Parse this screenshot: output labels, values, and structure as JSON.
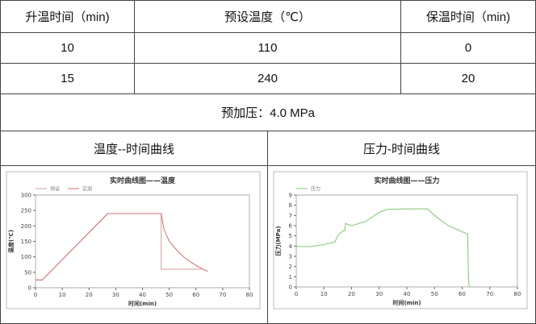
{
  "table": {
    "headers": [
      "升温时间（min)",
      "预设温度（℃）",
      "保温时间（min)"
    ],
    "rows": [
      [
        "10",
        "110",
        "0"
      ],
      [
        "15",
        "240",
        "20"
      ]
    ],
    "preload": "预加压：4.0 MPa",
    "chart_titles": [
      "温度--时间曲线",
      "压力-时间曲线"
    ]
  },
  "chart_data": [
    {
      "type": "line",
      "title": "实时曲线图——温度",
      "xlabel": "时间(min)",
      "ylabel": "温度(℃)",
      "xlim": [
        0,
        80
      ],
      "ylim": [
        0,
        300
      ],
      "xticks": [
        0,
        10,
        20,
        30,
        40,
        50,
        60,
        70,
        80
      ],
      "yticks": [
        0,
        50,
        100,
        150,
        200,
        250,
        300
      ],
      "legend": "top-left",
      "series": [
        {
          "name": "预设",
          "color": "#d89a9a",
          "x": [
            0,
            2.5,
            27,
            47,
            47,
            62
          ],
          "y": [
            25,
            25,
            240,
            240,
            60,
            60
          ]
        },
        {
          "name": "实测",
          "color": "#e06a6a",
          "x": [
            0,
            2.5,
            27,
            47,
            48,
            50,
            53,
            56,
            59,
            62,
            64.5
          ],
          "y": [
            25,
            25,
            240,
            240,
            190,
            150,
            120,
            95,
            78,
            62,
            53
          ]
        }
      ]
    },
    {
      "type": "line",
      "title": "实时曲线图——压力",
      "xlabel": "时间(min)",
      "ylabel": "压力(MPa)",
      "xlim": [
        0,
        80
      ],
      "ylim": [
        0,
        9
      ],
      "xticks": [
        0,
        10,
        20,
        30,
        40,
        50,
        60,
        70,
        80
      ],
      "yticks": [
        0,
        1,
        2,
        3,
        4,
        5,
        6,
        7,
        8,
        9
      ],
      "legend": "top-left",
      "series": [
        {
          "name": "压力",
          "color": "#7cc86a",
          "x": [
            0,
            0.5,
            5,
            10,
            14,
            15,
            16,
            17,
            17.5,
            17.8,
            18.5,
            20,
            25,
            30,
            33,
            40,
            47.5,
            50,
            55,
            60,
            62,
            62.3,
            62.6,
            64
          ],
          "y": [
            4.05,
            3.95,
            3.95,
            4.15,
            4.4,
            5,
            5.3,
            5.5,
            5.5,
            6.2,
            6.15,
            6,
            6.4,
            7.3,
            7.6,
            7.65,
            7.65,
            7,
            6,
            5.4,
            5.2,
            0.7,
            0,
            0
          ]
        }
      ]
    }
  ]
}
